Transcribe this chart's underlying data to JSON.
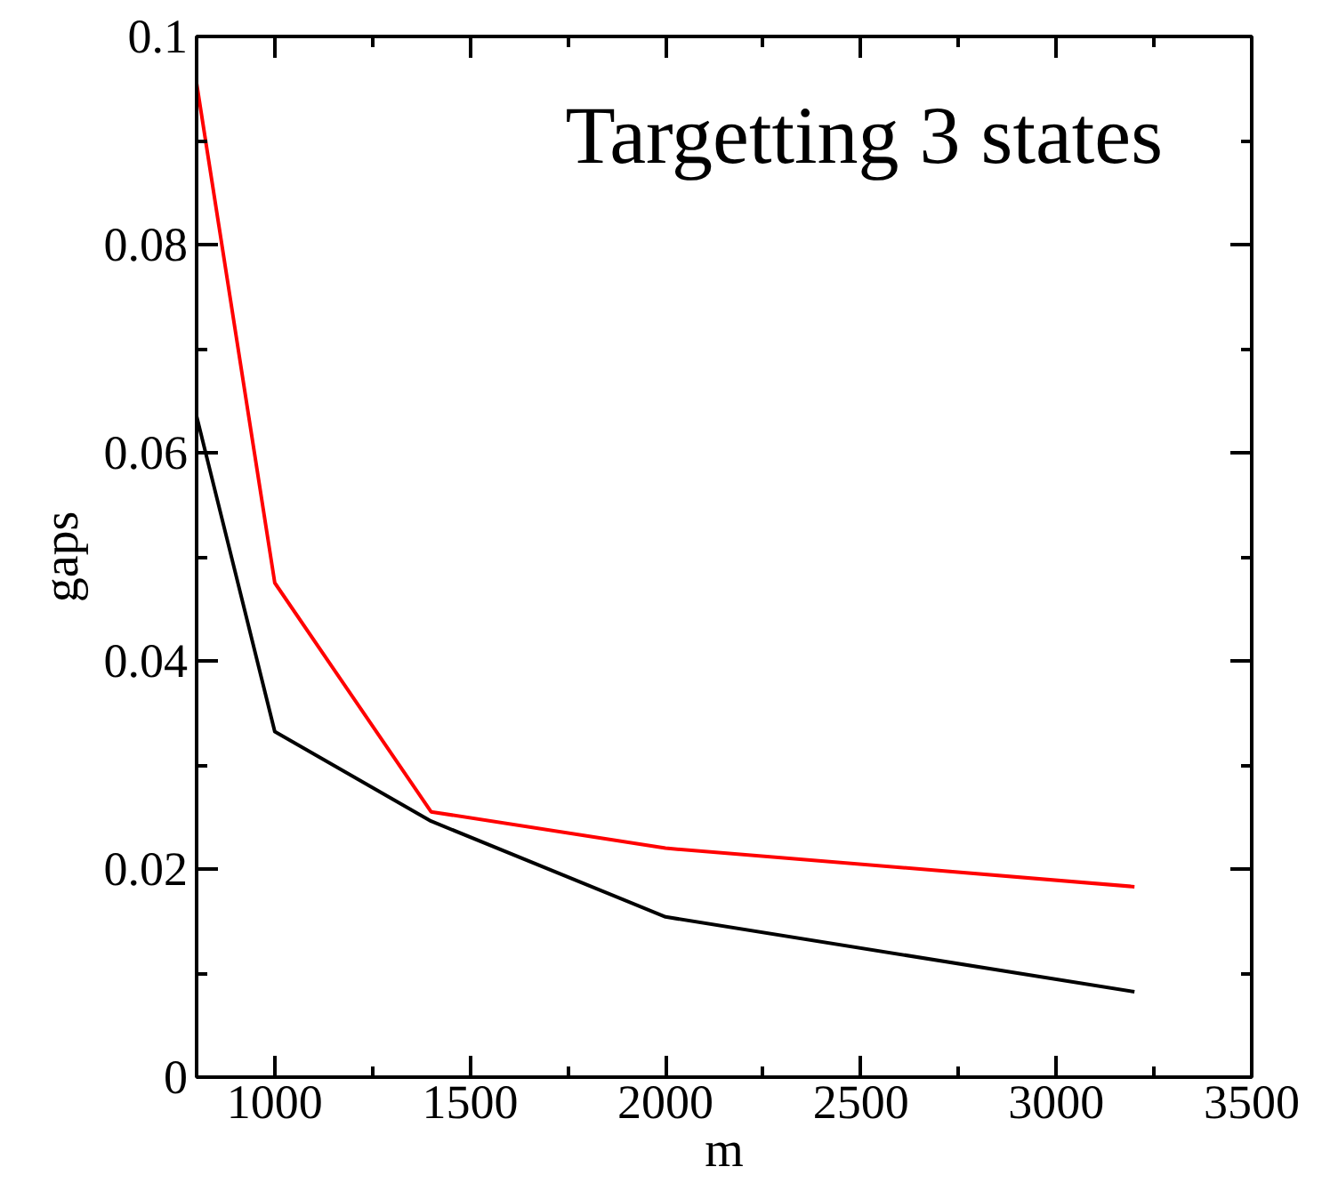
{
  "chart_data": {
    "type": "line",
    "xlabel": "m",
    "ylabel": "gaps",
    "annotations": [
      "Targetting 3 states"
    ],
    "xlim": [
      800,
      3500
    ],
    "xticks": [
      1000,
      1500,
      2000,
      2500,
      3000,
      3500
    ],
    "ylim": [
      0,
      0.1
    ],
    "yticks": [
      0,
      0.02,
      0.04,
      0.06,
      0.08,
      0.1
    ],
    "grid": false,
    "marker": "none",
    "line_style": "solid",
    "series": [
      {
        "color": "#ff0000",
        "x": [
          800,
          1000,
          1400,
          2000,
          3200
        ],
        "values": [
          0.0955,
          0.0475,
          0.0255,
          0.022,
          0.0183
        ]
      },
      {
        "color": "#000000",
        "x": [
          800,
          1000,
          1400,
          2000,
          3200
        ],
        "values": [
          0.0635,
          0.0332,
          0.0246,
          0.0154,
          0.0082
        ]
      }
    ]
  }
}
